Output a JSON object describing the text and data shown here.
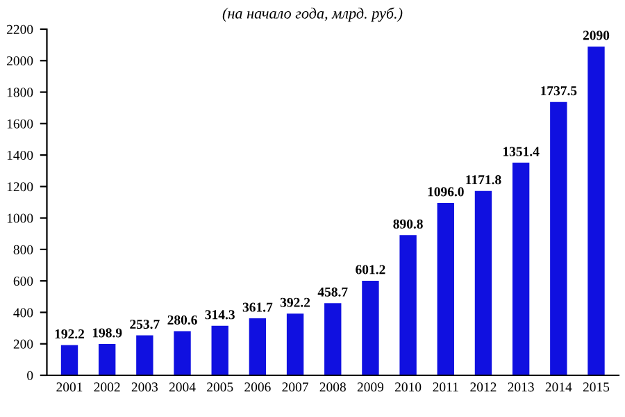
{
  "chart_data": {
    "type": "bar",
    "subtitle": "(на начало года, млрд. руб.)",
    "categories": [
      "2001",
      "2002",
      "2003",
      "2004",
      "2005",
      "2006",
      "2007",
      "2008",
      "2009",
      "2010",
      "2011",
      "2012",
      "2013",
      "2014",
      "2015"
    ],
    "values": [
      192.2,
      198.9,
      253.7,
      280.6,
      314.3,
      361.7,
      392.2,
      458.7,
      601.2,
      890.8,
      1096.0,
      1171.8,
      1351.4,
      1737.5,
      2090
    ],
    "value_labels": [
      "192.2",
      "198.9",
      "253.7",
      "280.6",
      "314.3",
      "361.7",
      "392.2",
      "458.7",
      "601.2",
      "890.8",
      "1096.0",
      "1171.8",
      "1351.4",
      "1737.5",
      "2090"
    ],
    "color": "#1010e0",
    "ylim": [
      0,
      2200
    ],
    "yticks": [
      0,
      200,
      400,
      600,
      800,
      1000,
      1200,
      1400,
      1600,
      1800,
      2000,
      2200
    ],
    "grid": false,
    "legend": false
  }
}
